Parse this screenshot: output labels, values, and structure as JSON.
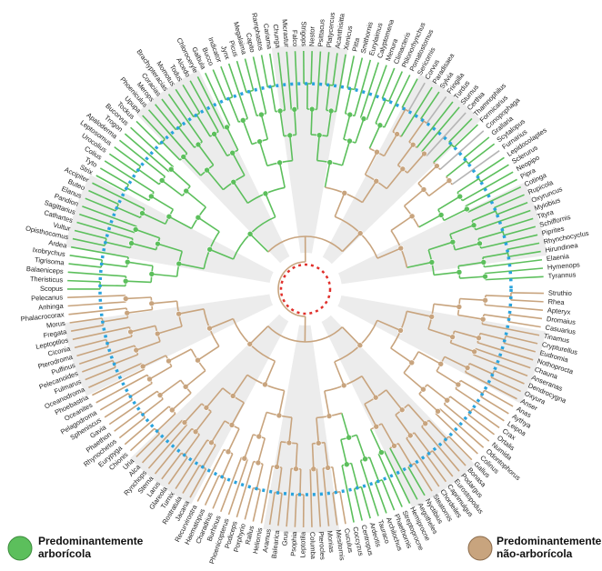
{
  "tips": [
    "Struthio",
    "Rhea",
    "Apteryx",
    "Dromaius",
    "Casuarius",
    "Tinamus",
    "Crypturellus",
    "Eudromia",
    "Nothoprocta",
    "Chauna",
    "Anseranas",
    "Dendrocygna",
    "Oxyura",
    "Anser",
    "Anas",
    "Aythya",
    "Leipoa",
    "Crax",
    "Ortalis",
    "Numida",
    "Odontophorus",
    "Colinus",
    "Gallus",
    "Bonasa",
    "Podargus",
    "Eurostopodus",
    "Caprimulgus",
    "Chordeiles",
    "Steatornis",
    "Nyctibius",
    "Aegotheles",
    "Hemiprocne",
    "Streptoprocne",
    "Phaethornis",
    "Archilochus",
    "Tauraco",
    "Ardeotis",
    "Centropus",
    "Coccyzus",
    "Cuculus",
    "Mesitornis",
    "Monias",
    "Pterocles",
    "Columba",
    "Leptotila",
    "Psophia",
    "Grus",
    "Balearica",
    "Aramus",
    "Heliornis",
    "Rallus",
    "Porphyrio",
    "Podiceps",
    "Phoenicopterus",
    "Burhinus",
    "Charadrius",
    "Haematopus",
    "Recurvirostra",
    "Jacana",
    "Rostratula",
    "Turnix",
    "Glareola",
    "Larus",
    "Sterna",
    "Rynchops",
    "Alca",
    "Uria",
    "Chionis",
    "Eurypyga",
    "Rhynochetos",
    "Phaethon",
    "Gavia",
    "Spheniscus",
    "Pelagodroma",
    "Oceanites",
    "Phoebastria",
    "Oceanodroma",
    "Fulmarus",
    "Pelecanoides",
    "Puffinus",
    "Pterodroma",
    "Ciconia",
    "Leptoptilos",
    "Fregata",
    "Morus",
    "Phalacrocorax",
    "Anhinga",
    "Pelecanus",
    "Scopus",
    "Theristicus",
    "Balaeniceps",
    "Tigrisoma",
    "Ixobrychus",
    "Ardea",
    "Opisthocomus",
    "Vultur",
    "Cathartes",
    "Sagittarius",
    "Pandion",
    "Elanus",
    "Buteo",
    "Accipiter",
    "Strix",
    "Tyto",
    "Colius",
    "Urocolius",
    "Leptosomus",
    "Apaloderma",
    "Trogon",
    "Bucorvus",
    "Tockus",
    "Upupa",
    "Phoeniculus",
    "Merops",
    "Coracias",
    "Brachypteracias",
    "Momotus",
    "Todus",
    "Alcedo",
    "Chloroceryle",
    "Galbula",
    "Bucco",
    "Indicator",
    "Jynx",
    "Picus",
    "Megalaima",
    "Capito",
    "Ramphastos",
    "Cariama",
    "Chunga",
    "Micrastur",
    "Falco",
    "Strigops",
    "Nestor",
    "Psittacus",
    "Platycercus",
    "Acanthisitta",
    "Xenicus",
    "Pitta",
    "Smithornis",
    "Eurylaimus",
    "Calyptomena",
    "Menura",
    "Climacteris",
    "Ptilonorhynchus",
    "Pomatostomus",
    "Sericornis",
    "Corvus",
    "Paradisaea",
    "Sylvia",
    "Fringilla",
    "Turdus",
    "Sturnus",
    "Certhia",
    "Thamnophilus",
    "Formicarius",
    "Conopophaga",
    "Grallaria",
    "Scytalopus",
    "Furnarius",
    "Lepidocolaptes",
    "Sclerurus",
    "Neopipo",
    "Pipra",
    "Cotinga",
    "Rupicola",
    "Oxyruncus",
    "Myiobius",
    "Tityra",
    "Schiffornis",
    "Piprites",
    "Rhynchocyclus",
    "Hirundinea",
    "Elaenia",
    "Hymenops",
    "Tyrannus"
  ],
  "legend": [
    {
      "lines": [
        "Predominantemente",
        "arborícola"
      ],
      "color": "#5cbf5c"
    },
    {
      "lines": [
        "Predominantemente",
        "não-arborícola"
      ],
      "color": "#c8a47e"
    }
  ]
}
